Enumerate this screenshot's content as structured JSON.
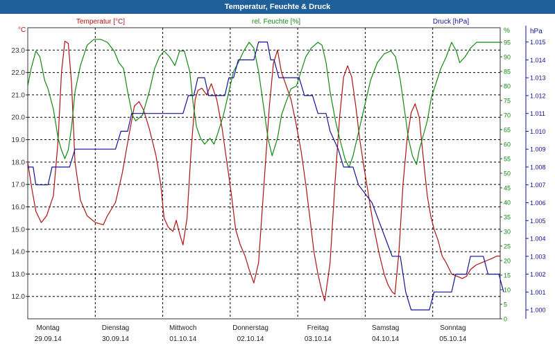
{
  "title": "Temperatur, Feuchte & Druck",
  "chart_data": {
    "type": "line",
    "title": "Temperatur, Feuchte & Druck",
    "axes": {
      "temperature": {
        "label": "Temperatur [°C]",
        "unit": "°C",
        "min": 11.0,
        "max": 24.0,
        "ticks": [
          12.0,
          13.0,
          14.0,
          15.0,
          16.0,
          17.0,
          18.0,
          19.0,
          20.0,
          21.0,
          22.0,
          23.0
        ],
        "tick_labels": [
          "12.0",
          "13.0",
          "14.0",
          "15.0",
          "16.0",
          "17.0",
          "18.0",
          "19.0",
          "20.0",
          "21.0",
          "22.0",
          "23.0"
        ]
      },
      "humidity": {
        "label": "rel. Feuchte [%]",
        "unit": "%",
        "min": 0,
        "max": 100,
        "ticks": [
          0,
          5,
          10,
          15,
          20,
          25,
          30,
          35,
          40,
          45,
          50,
          55,
          60,
          65,
          70,
          75,
          80,
          85,
          90,
          95
        ],
        "tick_labels": [
          "0",
          "5",
          "10",
          "15",
          "20",
          "25",
          "30",
          "35",
          "40",
          "45",
          "50",
          "55",
          "60",
          "65",
          "70",
          "75",
          "80",
          "85",
          "90",
          "95"
        ]
      },
      "pressure": {
        "label": "Druck [hPa]",
        "unit": "hPa",
        "min": 0.9995,
        "max": 1.0158,
        "ticks": [
          1.0,
          1.001,
          1.002,
          1.003,
          1.004,
          1.005,
          1.006,
          1.007,
          1.008,
          1.009,
          1.01,
          1.011,
          1.012,
          1.013,
          1.014,
          1.015
        ],
        "tick_labels": [
          "1.000",
          "1.001",
          "1.002",
          "1.003",
          "1.004",
          "1.005",
          "1.006",
          "1.007",
          "1.008",
          "1.009",
          "1.010",
          "1.011",
          "1.012",
          "1.013",
          "1.014",
          "1.015"
        ]
      }
    },
    "unit_labels": {
      "temperature": "°C",
      "humidity": "%",
      "pressure": "hPa"
    },
    "x_range_days": [
      0,
      7
    ],
    "days": [
      {
        "name": "Montag",
        "date": "29.09.14"
      },
      {
        "name": "Dienstag",
        "date": "30.09.14"
      },
      {
        "name": "Mittwoch",
        "date": "01.10.14"
      },
      {
        "name": "Donnerstag",
        "date": "02.10.14"
      },
      {
        "name": "Freitag",
        "date": "03.10.14"
      },
      {
        "name": "Samstag",
        "date": "04.10.14"
      },
      {
        "name": "Sonntag",
        "date": "05.10.14"
      }
    ],
    "grid": true,
    "series": [
      {
        "name": "Temperatur",
        "axis": "temperature",
        "color": "#b01010",
        "points": [
          [
            0,
            18.0
          ],
          [
            0.05,
            17.0
          ],
          [
            0.12,
            15.8
          ],
          [
            0.2,
            15.3
          ],
          [
            0.28,
            15.6
          ],
          [
            0.38,
            16.5
          ],
          [
            0.45,
            19.0
          ],
          [
            0.5,
            22.0
          ],
          [
            0.55,
            23.4
          ],
          [
            0.6,
            23.3
          ],
          [
            0.65,
            21.5
          ],
          [
            0.7,
            18.0
          ],
          [
            0.78,
            16.3
          ],
          [
            0.88,
            15.6
          ],
          [
            1.0,
            15.3
          ],
          [
            1.12,
            15.2
          ],
          [
            1.18,
            15.6
          ],
          [
            1.3,
            16.2
          ],
          [
            1.4,
            17.5
          ],
          [
            1.5,
            19.2
          ],
          [
            1.58,
            20.5
          ],
          [
            1.65,
            20.7
          ],
          [
            1.72,
            20.3
          ],
          [
            1.8,
            19.5
          ],
          [
            1.9,
            18.3
          ],
          [
            1.97,
            17.0
          ],
          [
            2.02,
            15.5
          ],
          [
            2.08,
            15.1
          ],
          [
            2.15,
            14.9
          ],
          [
            2.2,
            15.4
          ],
          [
            2.25,
            14.8
          ],
          [
            2.3,
            14.3
          ],
          [
            2.36,
            15.5
          ],
          [
            2.42,
            18.5
          ],
          [
            2.48,
            20.8
          ],
          [
            2.52,
            21.2
          ],
          [
            2.58,
            21.3
          ],
          [
            2.65,
            21.0
          ],
          [
            2.72,
            21.5
          ],
          [
            2.8,
            20.8
          ],
          [
            2.88,
            19.5
          ],
          [
            2.95,
            18.0
          ],
          [
            3.02,
            16.5
          ],
          [
            3.08,
            15.0
          ],
          [
            3.15,
            14.3
          ],
          [
            3.22,
            13.8
          ],
          [
            3.28,
            13.2
          ],
          [
            3.35,
            12.6
          ],
          [
            3.42,
            13.5
          ],
          [
            3.5,
            17.0
          ],
          [
            3.58,
            20.5
          ],
          [
            3.64,
            22.4
          ],
          [
            3.7,
            23.0
          ],
          [
            3.76,
            22.0
          ],
          [
            3.82,
            21.5
          ],
          [
            3.9,
            20.8
          ],
          [
            3.97,
            19.8
          ],
          [
            4.05,
            18.5
          ],
          [
            4.12,
            17.0
          ],
          [
            4.18,
            15.5
          ],
          [
            4.24,
            14.0
          ],
          [
            4.3,
            13.0
          ],
          [
            4.36,
            12.2
          ],
          [
            4.4,
            11.8
          ],
          [
            4.48,
            13.5
          ],
          [
            4.55,
            17.0
          ],
          [
            4.62,
            20.0
          ],
          [
            4.68,
            21.8
          ],
          [
            4.74,
            22.3
          ],
          [
            4.8,
            21.8
          ],
          [
            4.86,
            20.5
          ],
          [
            4.92,
            19.0
          ],
          [
            4.98,
            17.8
          ],
          [
            5.05,
            16.5
          ],
          [
            5.12,
            15.2
          ],
          [
            5.2,
            14.0
          ],
          [
            5.28,
            13.0
          ],
          [
            5.34,
            12.5
          ],
          [
            5.4,
            12.2
          ],
          [
            5.44,
            12.1
          ],
          [
            5.5,
            14.0
          ],
          [
            5.56,
            17.0
          ],
          [
            5.62,
            19.0
          ],
          [
            5.68,
            20.2
          ],
          [
            5.74,
            20.6
          ],
          [
            5.8,
            20.0
          ],
          [
            5.86,
            18.2
          ],
          [
            5.92,
            16.5
          ],
          [
            5.97,
            15.6
          ],
          [
            6.02,
            15.0
          ],
          [
            6.08,
            14.5
          ],
          [
            6.14,
            13.8
          ],
          [
            6.2,
            13.5
          ],
          [
            6.28,
            13.0
          ],
          [
            6.36,
            12.9
          ],
          [
            6.44,
            12.8
          ],
          [
            6.5,
            12.9
          ],
          [
            6.56,
            13.2
          ],
          [
            6.64,
            13.4
          ],
          [
            6.72,
            13.5
          ],
          [
            6.8,
            13.6
          ],
          [
            6.88,
            13.7
          ],
          [
            6.95,
            13.8
          ],
          [
            7.0,
            13.8
          ]
        ]
      },
      {
        "name": "rel. Feuchte",
        "axis": "humidity",
        "color": "#118811",
        "points": [
          [
            0,
            80
          ],
          [
            0.05,
            86
          ],
          [
            0.12,
            92
          ],
          [
            0.18,
            90
          ],
          [
            0.25,
            82
          ],
          [
            0.3,
            79
          ],
          [
            0.38,
            72
          ],
          [
            0.45,
            62
          ],
          [
            0.5,
            58
          ],
          [
            0.55,
            55
          ],
          [
            0.6,
            58
          ],
          [
            0.65,
            66
          ],
          [
            0.7,
            78
          ],
          [
            0.78,
            87
          ],
          [
            0.88,
            94
          ],
          [
            0.98,
            96
          ],
          [
            1.08,
            96
          ],
          [
            1.18,
            95
          ],
          [
            1.28,
            92
          ],
          [
            1.35,
            88
          ],
          [
            1.42,
            86
          ],
          [
            1.48,
            78
          ],
          [
            1.55,
            70
          ],
          [
            1.6,
            68
          ],
          [
            1.7,
            70
          ],
          [
            1.8,
            78
          ],
          [
            1.88,
            86
          ],
          [
            1.95,
            90
          ],
          [
            2.02,
            92
          ],
          [
            2.1,
            90
          ],
          [
            2.18,
            87
          ],
          [
            2.25,
            92
          ],
          [
            2.32,
            92
          ],
          [
            2.4,
            85
          ],
          [
            2.45,
            74
          ],
          [
            2.5,
            66
          ],
          [
            2.56,
            62
          ],
          [
            2.62,
            60
          ],
          [
            2.7,
            62
          ],
          [
            2.76,
            60
          ],
          [
            2.82,
            64
          ],
          [
            2.9,
            70
          ],
          [
            2.98,
            78
          ],
          [
            3.05,
            85
          ],
          [
            3.12,
            88
          ],
          [
            3.2,
            92
          ],
          [
            3.28,
            95
          ],
          [
            3.35,
            93
          ],
          [
            3.42,
            85
          ],
          [
            3.5,
            72
          ],
          [
            3.56,
            62
          ],
          [
            3.62,
            56
          ],
          [
            3.7,
            62
          ],
          [
            3.76,
            70
          ],
          [
            3.82,
            74
          ],
          [
            3.9,
            79
          ],
          [
            3.98,
            80
          ],
          [
            4.05,
            85
          ],
          [
            4.12,
            90
          ],
          [
            4.2,
            93
          ],
          [
            4.3,
            95
          ],
          [
            4.36,
            94
          ],
          [
            4.42,
            88
          ],
          [
            4.48,
            78
          ],
          [
            4.56,
            68
          ],
          [
            4.62,
            62
          ],
          [
            4.7,
            55
          ],
          [
            4.76,
            52
          ],
          [
            4.82,
            56
          ],
          [
            4.9,
            64
          ],
          [
            4.98,
            72
          ],
          [
            5.08,
            82
          ],
          [
            5.18,
            88
          ],
          [
            5.28,
            91
          ],
          [
            5.38,
            92
          ],
          [
            5.45,
            90
          ],
          [
            5.52,
            82
          ],
          [
            5.58,
            72
          ],
          [
            5.64,
            62
          ],
          [
            5.7,
            56
          ],
          [
            5.76,
            53
          ],
          [
            5.8,
            58
          ],
          [
            5.86,
            63
          ],
          [
            5.92,
            68
          ],
          [
            5.98,
            76
          ],
          [
            6.05,
            81
          ],
          [
            6.12,
            86
          ],
          [
            6.2,
            90
          ],
          [
            6.28,
            95
          ],
          [
            6.35,
            92
          ],
          [
            6.4,
            88
          ],
          [
            6.48,
            90
          ],
          [
            6.56,
            93
          ],
          [
            6.65,
            95
          ],
          [
            6.75,
            95
          ],
          [
            6.9,
            95
          ],
          [
            7.0,
            95
          ]
        ]
      },
      {
        "name": "Druck",
        "axis": "pressure",
        "color": "#10109a",
        "points": [
          [
            0,
            1.008
          ],
          [
            0.08,
            1.008
          ],
          [
            0.12,
            1.007
          ],
          [
            0.3,
            1.007
          ],
          [
            0.36,
            1.008
          ],
          [
            0.62,
            1.008
          ],
          [
            0.7,
            1.009
          ],
          [
            1.3,
            1.009
          ],
          [
            1.38,
            1.01
          ],
          [
            1.48,
            1.01
          ],
          [
            1.54,
            1.011
          ],
          [
            2.3,
            1.011
          ],
          [
            2.38,
            1.012
          ],
          [
            2.46,
            1.012
          ],
          [
            2.52,
            1.013
          ],
          [
            2.62,
            1.013
          ],
          [
            2.68,
            1.012
          ],
          [
            2.92,
            1.012
          ],
          [
            2.98,
            1.013
          ],
          [
            3.05,
            1.013
          ],
          [
            3.12,
            1.014
          ],
          [
            3.35,
            1.014
          ],
          [
            3.42,
            1.015
          ],
          [
            3.55,
            1.015
          ],
          [
            3.6,
            1.014
          ],
          [
            3.65,
            1.014
          ],
          [
            3.72,
            1.013
          ],
          [
            4.02,
            1.013
          ],
          [
            4.1,
            1.012
          ],
          [
            4.22,
            1.012
          ],
          [
            4.3,
            1.011
          ],
          [
            4.42,
            1.011
          ],
          [
            4.48,
            1.01
          ],
          [
            4.6,
            1.009
          ],
          [
            4.68,
            1.008
          ],
          [
            4.82,
            1.008
          ],
          [
            4.9,
            1.007
          ],
          [
            5.1,
            1.006
          ],
          [
            5.2,
            1.005
          ],
          [
            5.3,
            1.004
          ],
          [
            5.4,
            1.003
          ],
          [
            5.52,
            1.003
          ],
          [
            5.6,
            1.001
          ],
          [
            5.68,
            1.0
          ],
          [
            5.95,
            1.0
          ],
          [
            6.02,
            1.001
          ],
          [
            6.28,
            1.001
          ],
          [
            6.34,
            1.002
          ],
          [
            6.5,
            1.002
          ],
          [
            6.56,
            1.003
          ],
          [
            6.75,
            1.003
          ],
          [
            6.82,
            1.002
          ],
          [
            6.98,
            1.002
          ],
          [
            7.05,
            1.001
          ]
        ]
      }
    ]
  }
}
